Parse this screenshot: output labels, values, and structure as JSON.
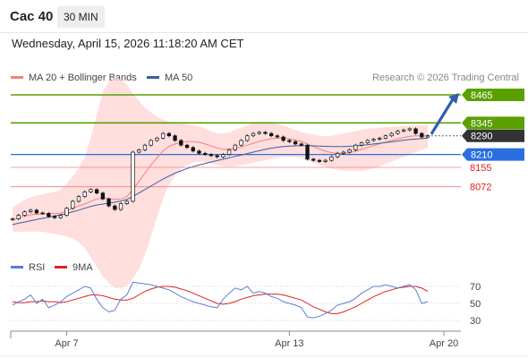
{
  "header": {
    "instrument": "Cac 40",
    "timeframe": "30 MIN",
    "datetime": "Wednesday, April 15, 2026 11:18:20 AM CET"
  },
  "chart_data": [
    {
      "type": "candlestick",
      "panel": "price",
      "legend": [
        {
          "name": "MA 20 + Bollinger Bands",
          "color": "#f08080"
        },
        {
          "name": "MA 50",
          "color": "#3a5f9e"
        }
      ],
      "legend_placement": "top-left",
      "watermark": "Research © 2026 Trading Central",
      "levels": [
        {
          "value": 8465,
          "label": "8465",
          "color": "#5aa000",
          "style": "resistance",
          "tag": "filled"
        },
        {
          "value": 8345,
          "label": "8345",
          "color": "#5aa000",
          "style": "resistance",
          "tag": "filled"
        },
        {
          "value": 8290,
          "label": "8290",
          "color": "#333333",
          "style": "last-price",
          "tag": "filled"
        },
        {
          "value": 8210,
          "label": "8210",
          "color": "#2a6fe0",
          "style": "pivot",
          "tag": "filled"
        },
        {
          "value": 8155,
          "label": "8155",
          "color": "#e02020",
          "style": "support",
          "tag": "text"
        },
        {
          "value": 8072,
          "label": "8072",
          "color": "#e02020",
          "style": "support",
          "tag": "text"
        }
      ],
      "close": [
        7935,
        7950,
        7965,
        7972,
        7960,
        7958,
        7945,
        7940,
        7950,
        7980,
        8010,
        8030,
        8050,
        8060,
        8045,
        8020,
        7990,
        7975,
        8000,
        8010,
        8220,
        8230,
        8250,
        8270,
        8280,
        8300,
        8290,
        8270,
        8250,
        8240,
        8225,
        8215,
        8210,
        8205,
        8200,
        8210,
        8230,
        8250,
        8270,
        8290,
        8300,
        8305,
        8300,
        8290,
        8285,
        8270,
        8265,
        8255,
        8250,
        8190,
        8185,
        8180,
        8185,
        8200,
        8215,
        8220,
        8230,
        8250,
        8260,
        8270,
        8275,
        8280,
        8290,
        8300,
        8310,
        8315,
        8320,
        8300,
        8285,
        8290
      ],
      "ma20": [
        7930,
        7938,
        7946,
        7952,
        7955,
        7956,
        7957,
        7958,
        7960,
        7968,
        7980,
        7990,
        7998,
        8010,
        8020,
        8025,
        8022,
        8018,
        8020,
        8030,
        8060,
        8095,
        8130,
        8165,
        8195,
        8225,
        8245,
        8255,
        8262,
        8265,
        8265,
        8262,
        8255,
        8247,
        8238,
        8232,
        8232,
        8236,
        8242,
        8250,
        8258,
        8266,
        8272,
        8277,
        8280,
        8280,
        8277,
        8272,
        8266,
        8255,
        8244,
        8233,
        8224,
        8218,
        8215,
        8215,
        8218,
        8224,
        8232,
        8240,
        8248,
        8256,
        8263,
        8270,
        8277,
        8283,
        8288,
        8290,
        8290,
        8290
      ],
      "bb_upper": [
        7985,
        8000,
        8015,
        8028,
        8035,
        8040,
        8045,
        8050,
        8060,
        8085,
        8115,
        8150,
        8200,
        8280,
        8380,
        8480,
        8520,
        8540,
        8530,
        8510,
        8470,
        8440,
        8410,
        8390,
        8370,
        8360,
        8350,
        8345,
        8342,
        8340,
        8335,
        8330,
        8320,
        8310,
        8300,
        8300,
        8305,
        8315,
        8325,
        8335,
        8345,
        8350,
        8350,
        8345,
        8340,
        8335,
        8325,
        8315,
        8305,
        8300,
        8295,
        8290,
        8288,
        8290,
        8295,
        8300,
        8305,
        8310,
        8315,
        8320,
        8322,
        8324,
        8326,
        8328,
        8330,
        8332,
        8334,
        8335,
        8335,
        8335
      ],
      "bb_lower": [
        7880,
        7880,
        7880,
        7880,
        7880,
        7880,
        7875,
        7870,
        7865,
        7860,
        7850,
        7835,
        7810,
        7770,
        7730,
        7690,
        7660,
        7640,
        7640,
        7650,
        7680,
        7720,
        7780,
        7860,
        7940,
        8020,
        8080,
        8120,
        8150,
        8165,
        8175,
        8180,
        8178,
        8172,
        8165,
        8160,
        8158,
        8160,
        8165,
        8170,
        8175,
        8180,
        8185,
        8190,
        8195,
        8200,
        8200,
        8198,
        8195,
        8185,
        8175,
        8165,
        8158,
        8150,
        8145,
        8142,
        8140,
        8140,
        8140,
        8145,
        8150,
        8160,
        8170,
        8180,
        8190,
        8200,
        8210,
        8220,
        8230,
        8240
      ],
      "ma50": [
        7910,
        7916,
        7921,
        7927,
        7932,
        7937,
        7942,
        7947,
        7952,
        7958,
        7965,
        7972,
        7980,
        7988,
        7994,
        7998,
        8002,
        8006,
        8011,
        8018,
        8030,
        8045,
        8060,
        8075,
        8090,
        8105,
        8118,
        8130,
        8140,
        8150,
        8158,
        8165,
        8172,
        8178,
        8184,
        8190,
        8196,
        8202,
        8208,
        8214,
        8220,
        8226,
        8232,
        8237,
        8241,
        8244,
        8246,
        8247,
        8248,
        8248,
        8247,
        8246,
        8245,
        8244,
        8244,
        8244,
        8245,
        8247,
        8249,
        8252,
        8255,
        8258,
        8261,
        8264,
        8268,
        8271,
        8274,
        8276,
        8278,
        8280
      ],
      "projection": {
        "from": 8290,
        "to": 8465
      },
      "x_ticks": [
        "Apr 7",
        "Apr 13",
        "Apr 20"
      ]
    },
    {
      "type": "line",
      "panel": "oscillator",
      "legend": [
        {
          "name": "RSI",
          "color": "#5b7fd6"
        },
        {
          "name": "9MA",
          "color": "#e02020"
        }
      ],
      "legend_placement": "top-left",
      "y_ticks": [
        70,
        50,
        30
      ],
      "ylim": [
        20,
        80
      ],
      "rsi": [
        48,
        52,
        55,
        60,
        50,
        55,
        45,
        48,
        52,
        58,
        62,
        66,
        70,
        68,
        55,
        45,
        40,
        42,
        55,
        60,
        75,
        74,
        73,
        72,
        70,
        68,
        66,
        62,
        58,
        55,
        52,
        50,
        48,
        46,
        45,
        55,
        62,
        68,
        66,
        70,
        62,
        64,
        62,
        58,
        56,
        52,
        50,
        48,
        45,
        34,
        33,
        35,
        38,
        42,
        48,
        50,
        52,
        56,
        62,
        66,
        70,
        70,
        72,
        70,
        68,
        70,
        72,
        66,
        50,
        52
      ],
      "ma9": [
        52,
        51,
        51,
        52,
        52,
        53,
        52,
        52,
        51,
        52,
        54,
        56,
        58,
        60,
        60,
        59,
        57,
        55,
        54,
        54,
        56,
        60,
        64,
        67,
        69,
        70,
        70,
        69,
        67,
        65,
        62,
        59,
        56,
        53,
        50,
        49,
        50,
        52,
        55,
        57,
        59,
        60,
        61,
        61,
        61,
        60,
        58,
        56,
        54,
        50,
        46,
        43,
        40,
        38,
        38,
        40,
        43,
        46,
        50,
        54,
        58,
        61,
        64,
        66,
        68,
        69,
        70,
        70,
        68,
        64
      ]
    }
  ]
}
